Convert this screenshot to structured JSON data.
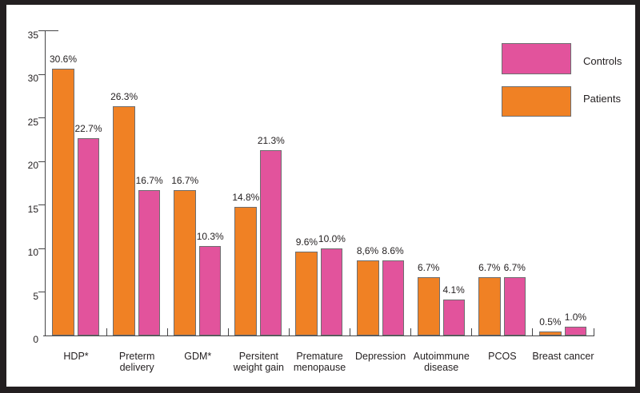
{
  "frame_color": "#231f20",
  "colors": {
    "patients": "#f08124",
    "controls": "#e2539c",
    "axis": "#454547",
    "text": "#231f20"
  },
  "legend": {
    "items": [
      {
        "label": "Controls",
        "color": "#e2539c"
      },
      {
        "label": "Patients",
        "color": "#f08124"
      }
    ]
  },
  "chart_data": {
    "type": "bar",
    "title": "",
    "xlabel": "",
    "ylabel": "",
    "grid": false,
    "legend_position": "top-right",
    "ylim": [
      0,
      35
    ],
    "yticks": [
      0,
      5,
      10,
      15,
      20,
      25,
      30,
      35
    ],
    "categories": [
      "HDP*",
      "Preterm\ndelivery",
      "GDM*",
      "Persitent\nweight gain",
      "Premature\nmenopause",
      "Depression",
      "Autoimmune\ndisease",
      "PCOS",
      "Breast cancer"
    ],
    "series": [
      {
        "name": "Patients",
        "color": "#f08124",
        "values": [
          30.6,
          26.3,
          16.7,
          14.8,
          9.6,
          8.6,
          6.7,
          6.7,
          0.5
        ],
        "labels": [
          "30.6%",
          "26.3%",
          "16.7%",
          "14.8%",
          "9.6%",
          "8,6%",
          "6.7%",
          "6.7%",
          "0.5%"
        ]
      },
      {
        "name": "Controls",
        "color": "#e2539c",
        "values": [
          22.7,
          16.7,
          10.3,
          21.3,
          10.0,
          8.6,
          4.1,
          6.7,
          1.0
        ],
        "labels": [
          "22.7%",
          "16.7%",
          "10.3%",
          "21.3%",
          "10.0%",
          "8.6%",
          "4.1%",
          "6.7%",
          "1.0%"
        ]
      }
    ]
  }
}
